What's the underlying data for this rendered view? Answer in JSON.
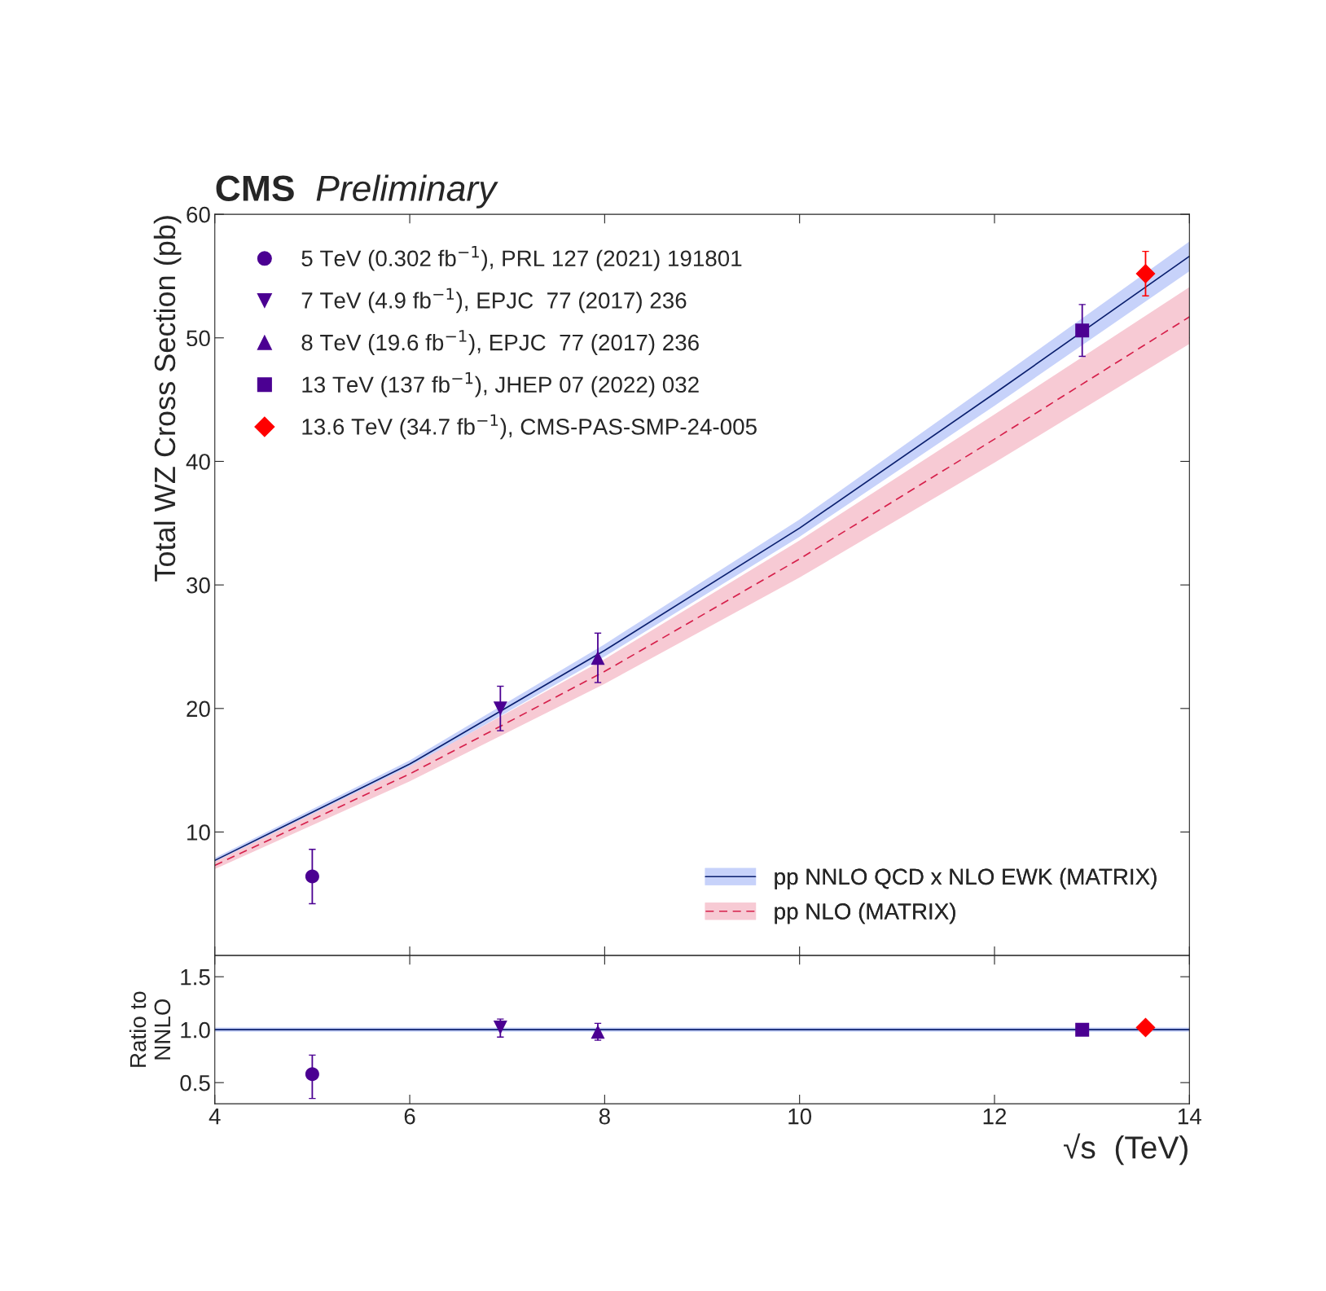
{
  "chart_data": [
    {
      "type": "scatter",
      "title": "CMS",
      "subtitle": "Preliminary",
      "ylabel": "Total WZ Cross Section (pb)",
      "xlim": [
        4,
        14
      ],
      "xticks": [
        4,
        6,
        8,
        10,
        12,
        14
      ],
      "ylim": [
        0,
        60
      ],
      "yticks": [
        10,
        20,
        30,
        40,
        50,
        60
      ],
      "tick_labels": "y",
      "grid": false,
      "legend": [
        "top left",
        "bottom right"
      ],
      "series": [
        {
          "type": "scatter",
          "name": "5 TeV (0.302 fb$^{−1}$), PRL 127 (2021) 191801",
          "color": "#4b0092",
          "marker": "circle",
          "x": [
            5.0
          ],
          "values": [
            6.4
          ],
          "errors": [
            2.2
          ]
        },
        {
          "type": "scatter",
          "name": "7 TeV (4.9 fb$^{−1}$), EPJC  77 (2017) 236",
          "color": "#4b0092",
          "marker": "triangle_down",
          "x": [
            6.93
          ],
          "values": [
            20.0
          ],
          "errors": [
            1.8
          ]
        },
        {
          "type": "scatter",
          "name": "8 TeV (19.6 fb$^{−1}$), EPJC  77 (2017) 236",
          "color": "#4b0092",
          "marker": "triangle",
          "x": [
            7.93
          ],
          "values": [
            24.1
          ],
          "errors": [
            2.0
          ]
        },
        {
          "type": "scatter",
          "name": "13 TeV (137 fb$^{−1}$), JHEP 07 (2022) 032",
          "color": "#4b0092",
          "marker": "square",
          "x": [
            12.9
          ],
          "values": [
            50.6
          ],
          "errors": [
            2.1
          ]
        },
        {
          "type": "scatter",
          "name": "13.6 TeV (34.7 fb$^{−1}$), CMS-PAS-SMP-24-005",
          "color": "#ff0000",
          "marker": "diamond",
          "x": [
            13.55
          ],
          "values": [
            55.2
          ],
          "errors": [
            1.8
          ]
        },
        {
          "type": "line",
          "name": "pp NNLO QCD x NLO EWK (MATRIX)",
          "color": "#0a1f6e",
          "line_style": "solid",
          "x": [
            4,
            6,
            8,
            10,
            12,
            14
          ],
          "values": [
            7.7,
            15.5,
            24.7,
            34.6,
            45.5,
            56.6
          ],
          "lower": [
            7.5,
            15.2,
            24.2,
            33.9,
            44.5,
            55.4
          ],
          "upper": [
            7.9,
            15.8,
            25.2,
            35.3,
            46.5,
            57.8
          ]
        },
        {
          "type": "line",
          "name": "pp NLO (MATRIX)",
          "color": "#d6204b",
          "line_style": "dashed",
          "x": [
            4,
            6,
            8,
            10,
            12,
            14
          ],
          "values": [
            7.3,
            14.7,
            23.0,
            32.1,
            41.8,
            51.7
          ],
          "lower": [
            7.0,
            14.1,
            22.0,
            30.6,
            39.9,
            49.5
          ],
          "upper": [
            7.6,
            15.3,
            24.0,
            33.6,
            43.8,
            54.1
          ]
        }
      ]
    },
    {
      "type": "scatter",
      "xlabel": "√s  (TeV)",
      "ylabel": "Ratio to\nNNLO",
      "xlim": [
        4,
        14
      ],
      "xticks": [
        4,
        6,
        8,
        10,
        12,
        14
      ],
      "ylim": [
        0.3,
        1.7
      ],
      "yticks": [
        0.5,
        {
          "value": 1.0,
          "label": "1.0"
        },
        1.5
      ],
      "grid": false,
      "series": [
        {
          "type": "line",
          "color": "#0a1f6e",
          "line_style": "solid",
          "x": [
            4,
            14
          ],
          "values": [
            1.0,
            1.0
          ],
          "lower": [
            0.98,
            0.98
          ],
          "upper": [
            1.02,
            1.02
          ]
        },
        {
          "type": "scatter",
          "color": "#4b0092",
          "marker": "circle",
          "x": [
            5.0
          ],
          "values": [
            0.58
          ],
          "errors": [
            [
              0.35,
              0.76
            ]
          ]
        },
        {
          "type": "scatter",
          "color": "#4b0092",
          "marker": "triangle_down",
          "x": [
            6.93
          ],
          "values": [
            1.02
          ],
          "errors": [
            [
              0.93,
              1.1
            ]
          ]
        },
        {
          "type": "scatter",
          "color": "#4b0092",
          "marker": "triangle",
          "x": [
            7.93
          ],
          "values": [
            0.98
          ],
          "errors": [
            [
              0.9,
              1.06
            ]
          ]
        },
        {
          "type": "scatter",
          "color": "#4b0092",
          "marker": "square",
          "x": [
            12.9
          ],
          "values": [
            1.0
          ]
        },
        {
          "type": "scatter",
          "color": "#ff0000",
          "marker": "diamond",
          "x": [
            13.55
          ],
          "values": [
            1.02
          ]
        }
      ]
    }
  ]
}
